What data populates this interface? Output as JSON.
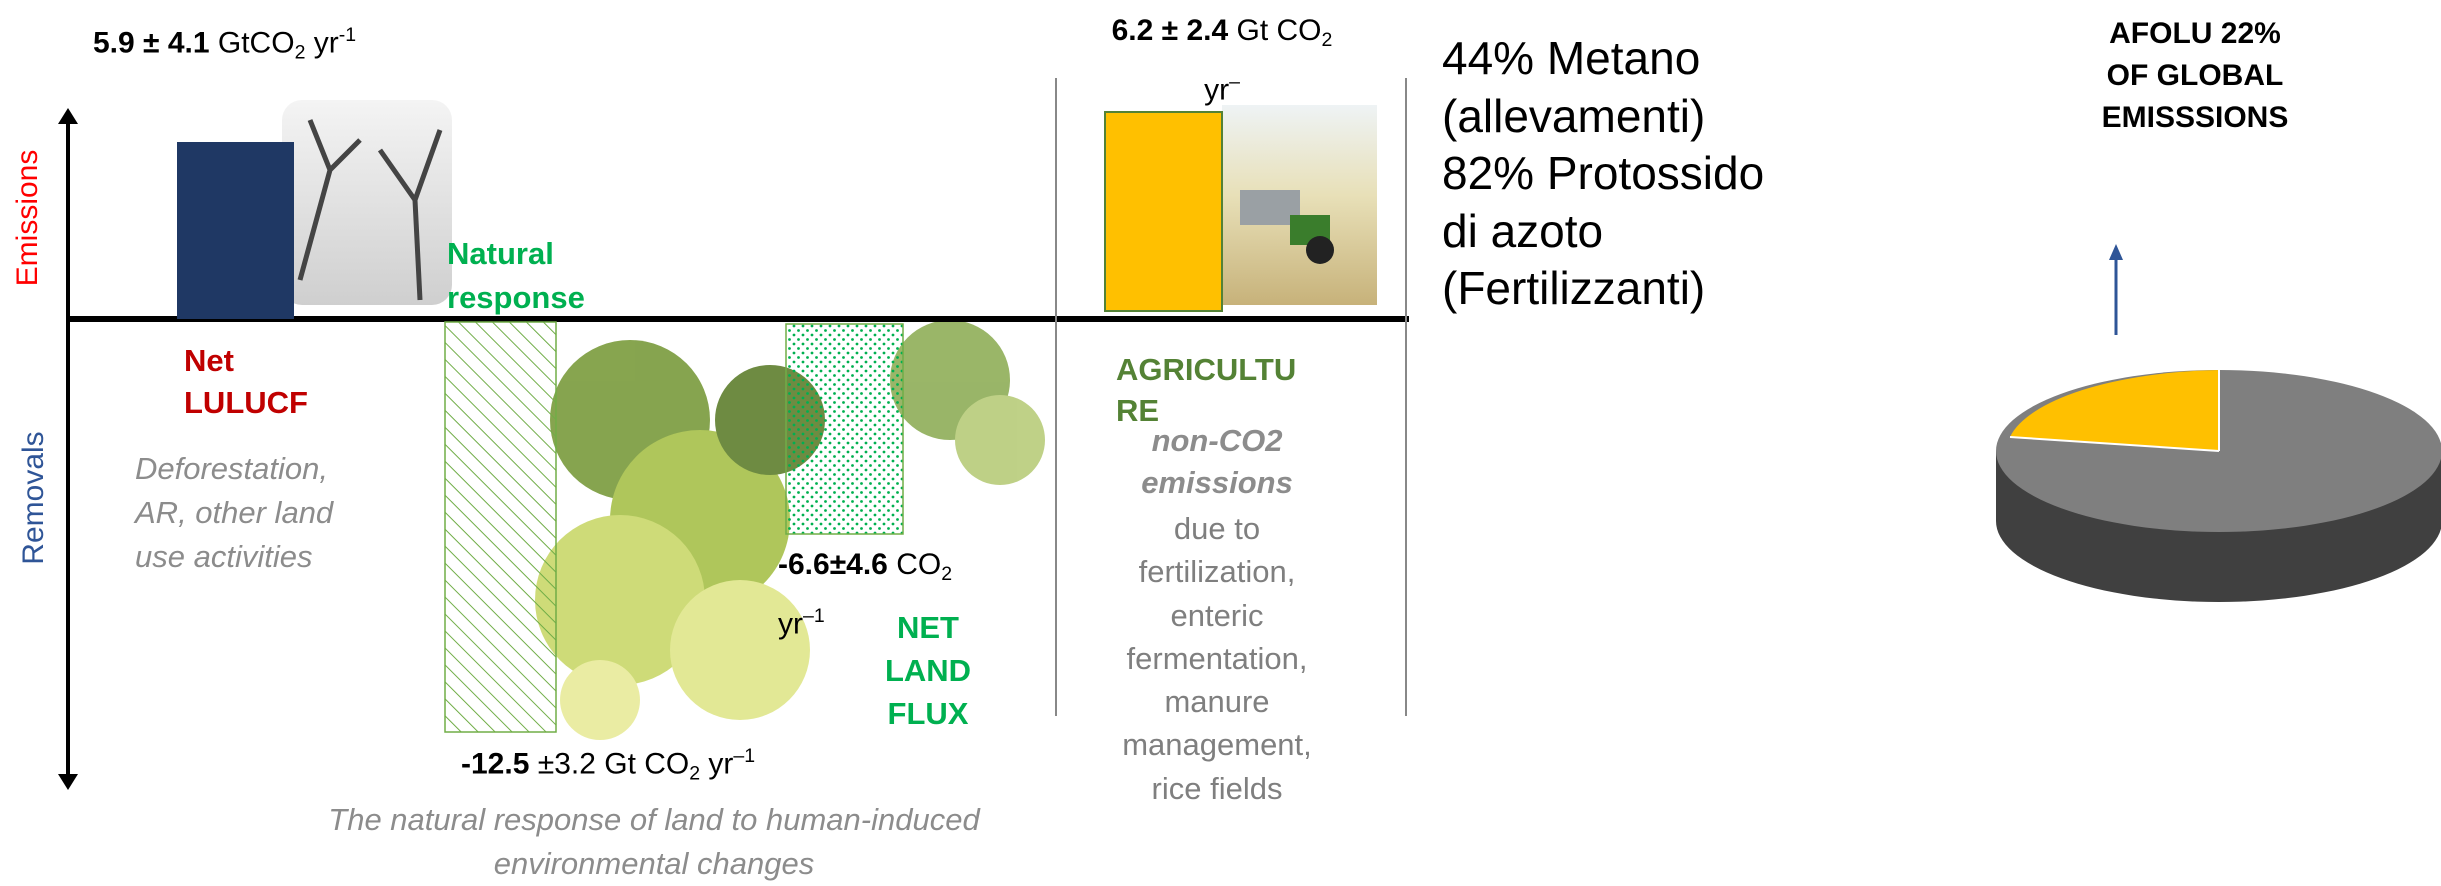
{
  "axis": {
    "emissions": "Emissions",
    "removals": "Removals"
  },
  "lulucf": {
    "value": [
      "5.9 ± 4.1",
      " GtCO",
      "2",
      " yr",
      "-1"
    ],
    "name": [
      "Net",
      "LULUCF"
    ],
    "description": [
      "Deforestation,",
      "AR, other land",
      "use activities"
    ]
  },
  "natural_response": {
    "name": [
      "Natural",
      "response"
    ],
    "value": [
      "-12.5",
      " ±3.2 Gt CO",
      "2",
      " yr",
      "–1"
    ],
    "caption": [
      "The natural response of land to human-induced",
      "environmental changes"
    ]
  },
  "net_land_flux": {
    "value": [
      "-6.6±4.6",
      " CO",
      "2",
      "yr",
      "–1"
    ],
    "name": [
      "NET",
      "LAND",
      "FLUX"
    ]
  },
  "agriculture": {
    "value": [
      "6.2 ± 2.4",
      " Gt CO",
      "2",
      "yr",
      "–"
    ],
    "name": [
      "AGRICULTU",
      "RE"
    ],
    "subtitle": [
      "non-CO2",
      "emissions"
    ],
    "description": [
      "due to",
      "fertilization,",
      "enteric",
      "fermentation,",
      "manure",
      "management,",
      "rice fields"
    ]
  },
  "notes": [
    "44% Metano",
    "(allevamenti)",
    "82% Protossido",
    "di azoto",
    "(Fertilizzanti)"
  ],
  "pie_title": [
    "AFOLU 22%",
    "OF GLOBAL",
    "EMISSSIONS"
  ]
}
